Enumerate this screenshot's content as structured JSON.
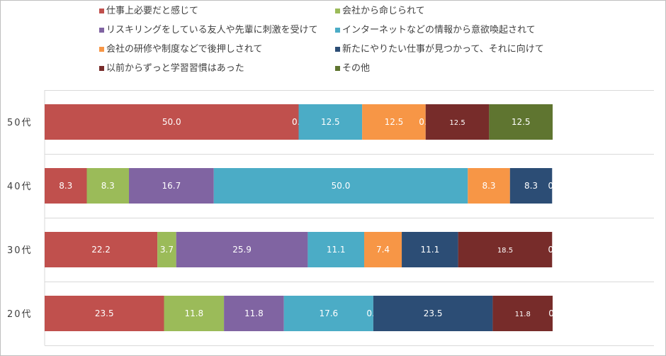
{
  "chart_data": {
    "type": "bar",
    "orientation": "horizontal",
    "stacked": true,
    "categories": [
      "50代",
      "40代",
      "30代",
      "20代"
    ],
    "xlim": [
      0,
      100
    ],
    "grid": false,
    "legend_position": "top",
    "series": [
      {
        "name": "仕事上必要だと感じて",
        "color": "#c0504d",
        "values": [
          50.0,
          8.3,
          22.2,
          23.5
        ],
        "labels": [
          "50.0",
          "8.3",
          "22.2",
          "23.5"
        ]
      },
      {
        "name": "会社から命じられて",
        "color": "#9bbb59",
        "values": [
          0.0,
          8.3,
          3.7,
          11.8
        ],
        "labels": [
          "0.0",
          "8.3",
          "3.7",
          "11.8"
        ]
      },
      {
        "name": "リスキリングをしている友人や先輩に刺激を受けて",
        "color": "#8064a2",
        "values": [
          0.0,
          16.7,
          25.9,
          11.8
        ],
        "labels": [
          "",
          "16.7",
          "25.9",
          "11.8"
        ]
      },
      {
        "name": "インターネットなどの情報から意欲喚起されて",
        "color": "#4bacc6",
        "values": [
          12.5,
          50.0,
          11.1,
          17.6
        ],
        "labels": [
          "12.5",
          "50.0",
          "11.1",
          "17.6"
        ]
      },
      {
        "name": "会社の研修や制度などで後押しされて",
        "color": "#f79646",
        "values": [
          12.5,
          8.3,
          7.4,
          0.0
        ],
        "labels": [
          "12.5",
          "8.3",
          "7.4",
          "0.0"
        ]
      },
      {
        "name": "新たにやりたい仕事が見つかって、それに向けて",
        "color": "#2c4d75",
        "values": [
          0.0,
          8.3,
          11.1,
          23.5
        ],
        "labels": [
          "0.0",
          "8.3",
          "11.1",
          "23.5"
        ]
      },
      {
        "name": "以前からずっと学習習慣はあった",
        "color": "#772c2a",
        "values": [
          12.5,
          0.0,
          18.5,
          11.8
        ],
        "labels": [
          "12.5",
          "0.",
          "18.5",
          "11.8"
        ]
      },
      {
        "name": "その他",
        "color": "#5f7530",
        "values": [
          12.5,
          0.0,
          0.0,
          0.0
        ],
        "labels": [
          "12.5",
          "",
          "0.",
          "0."
        ]
      }
    ]
  }
}
